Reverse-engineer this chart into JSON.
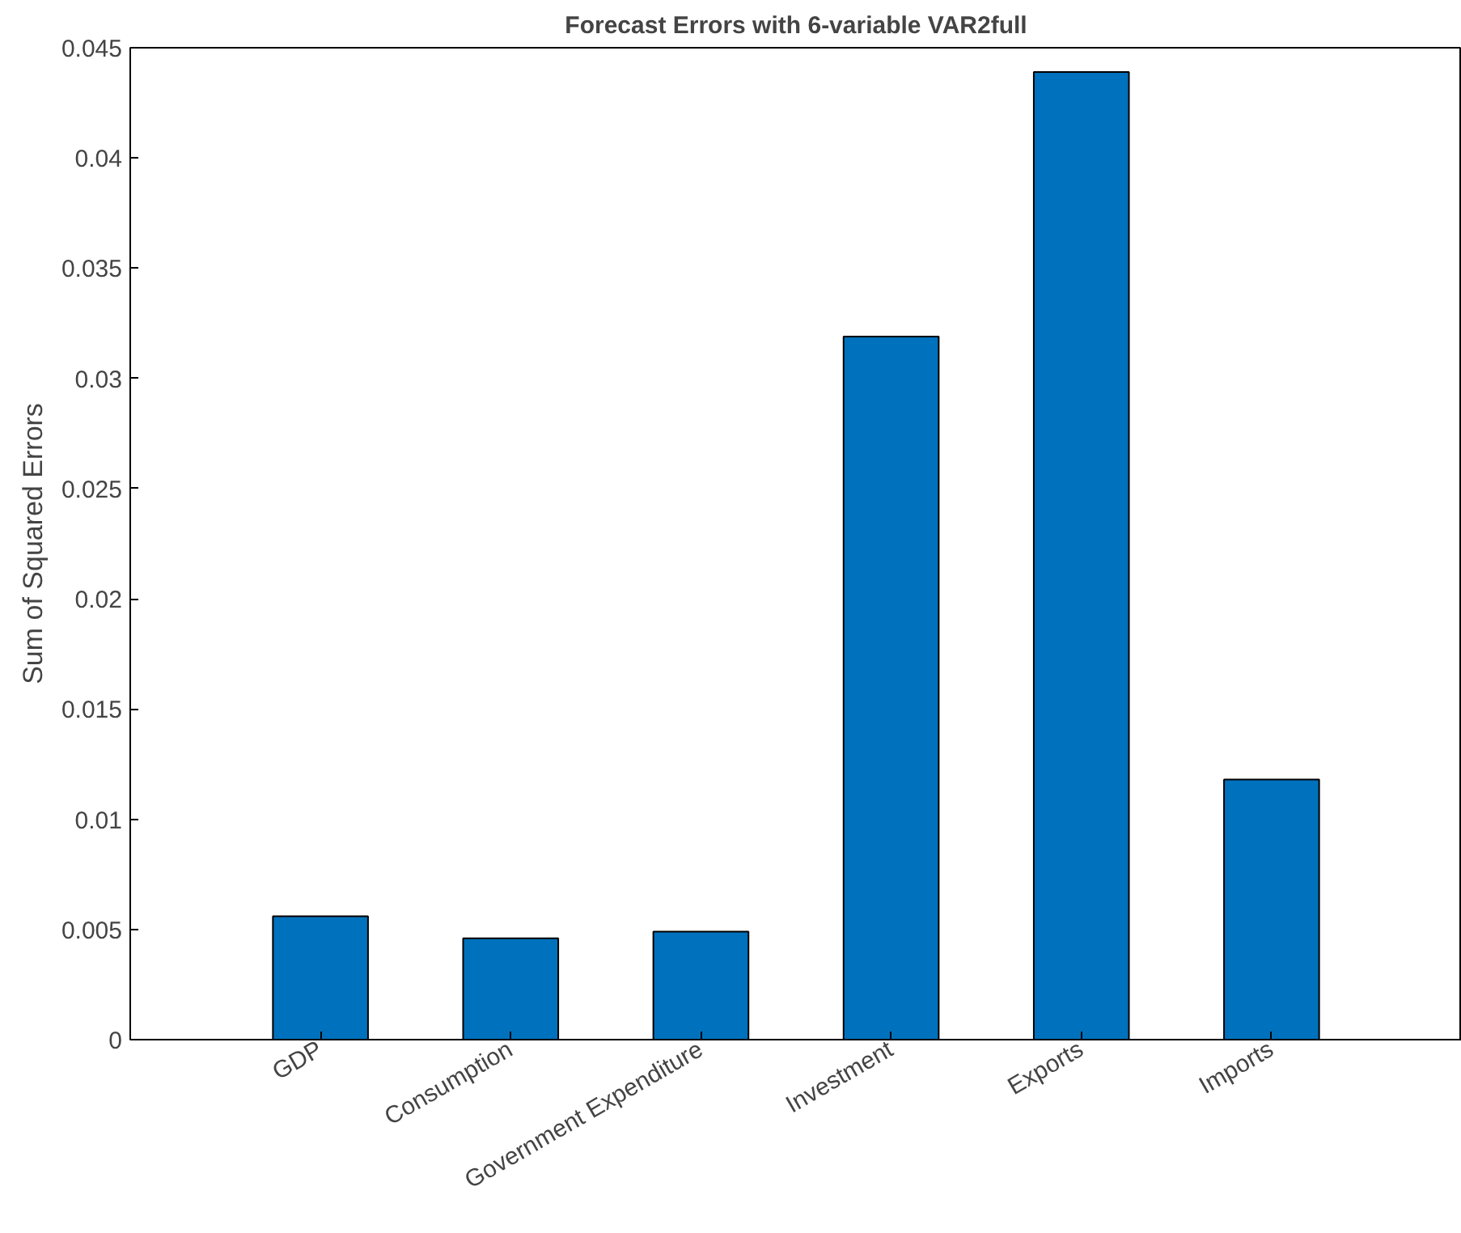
{
  "chart_data": {
    "type": "bar",
    "title": "Forecast Errors with 6-variable VAR2full",
    "ylabel": "Sum of Squared Errors",
    "categories": [
      "GDP",
      "Consumption",
      "Government Expenditure",
      "Investment",
      "Exports",
      "Imports"
    ],
    "values": [
      0.0056,
      0.0046,
      0.0049,
      0.0319,
      0.0439,
      0.0118
    ],
    "color": "#0072bd",
    "ylim": [
      0,
      0.045
    ],
    "yticks": [
      0,
      0.005,
      0.01,
      0.015,
      0.02,
      0.025,
      0.03,
      0.035,
      0.04,
      0.045
    ],
    "grid": false
  }
}
